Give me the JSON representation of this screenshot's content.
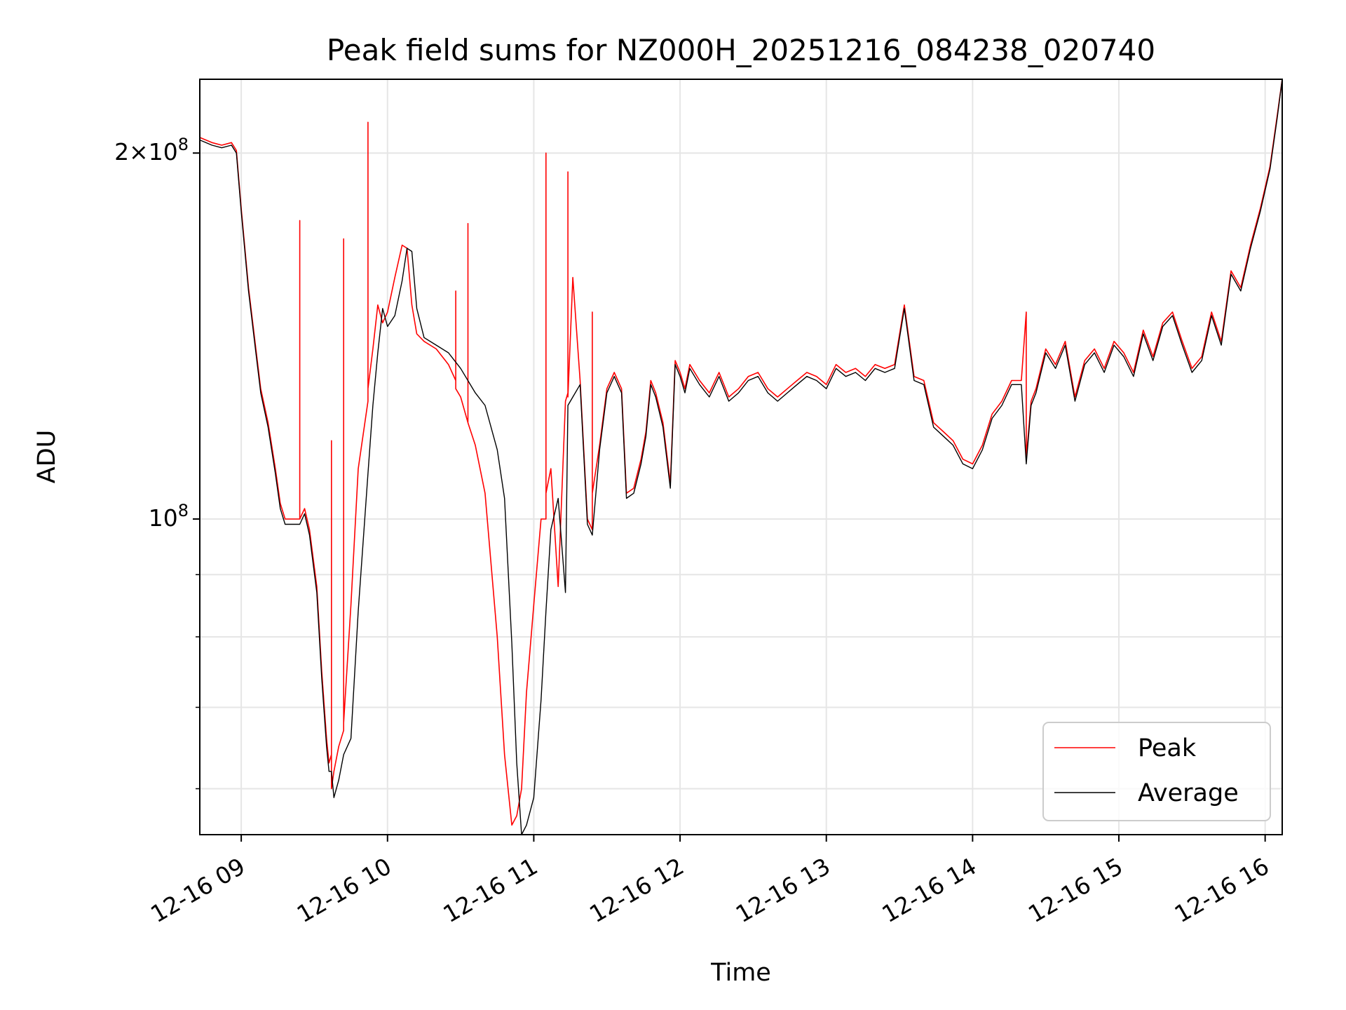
{
  "chart_data": {
    "type": "line",
    "title": "Peak field sums for NZ000H_20251216_084238_020740",
    "xlabel": "Time",
    "ylabel": "ADU",
    "yscale": "log",
    "xlim": [
      "12-16 08:43",
      "12-16 16:07"
    ],
    "ylim": [
      55000000,
      230000000
    ],
    "grid": true,
    "legend_location": "lower right",
    "x_ticks": [
      "12-16 09",
      "12-16 10",
      "12-16 11",
      "12-16 12",
      "12-16 13",
      "12-16 14",
      "12-16 15",
      "12-16 16"
    ],
    "y_ticks": [
      {
        "value": 100000000,
        "label": "10^8"
      },
      {
        "value": 200000000,
        "label": "2×10^8"
      }
    ],
    "series": [
      {
        "name": "Peak",
        "color": "#ff0000",
        "x": [
          "08:43",
          "08:48",
          "08:52",
          "08:56",
          "08:58",
          "09:00",
          "09:03",
          "09:06",
          "09:08",
          "09:11",
          "09:14",
          "09:16",
          "09:18",
          "09:21",
          "09:24",
          "09:24",
          "09:24",
          "09:26",
          "09:28",
          "09:31",
          "09:33",
          "09:35",
          "09:36",
          "09:37",
          "09:37",
          "09:37",
          "09:38",
          "09:40",
          "09:42",
          "09:42",
          "09:42",
          "09:45",
          "09:48",
          "09:52",
          "09:52",
          "09:52",
          "09:54",
          "09:56",
          "09:58",
          "10:00",
          "10:03",
          "10:06",
          "10:08",
          "10:10",
          "10:12",
          "10:15",
          "10:20",
          "10:25",
          "10:28",
          "10:28",
          "10:28",
          "10:30",
          "10:33",
          "10:33",
          "10:33",
          "10:36",
          "10:40",
          "10:45",
          "10:48",
          "10:51",
          "10:53",
          "10:55",
          "10:57",
          "11:00",
          "11:03",
          "11:05",
          "11:05",
          "11:05",
          "11:07",
          "11:10",
          "11:13",
          "11:14",
          "11:14",
          "11:14",
          "11:16",
          "11:19",
          "11:22",
          "11:24",
          "11:24",
          "11:24",
          "11:27",
          "11:30",
          "11:33",
          "11:36",
          "11:38",
          "11:41",
          "11:44",
          "11:46",
          "11:48",
          "11:50",
          "11:53",
          "11:56",
          "11:58",
          "12:00",
          "12:02",
          "12:04",
          "12:08",
          "12:12",
          "12:16",
          "12:20",
          "12:24",
          "12:28",
          "12:32",
          "12:36",
          "12:40",
          "12:44",
          "12:48",
          "12:52",
          "12:56",
          "13:00",
          "13:04",
          "13:08",
          "13:12",
          "13:16",
          "13:20",
          "13:24",
          "13:28",
          "13:32",
          "13:36",
          "13:40",
          "13:44",
          "13:48",
          "13:52",
          "13:56",
          "14:00",
          "14:04",
          "14:08",
          "14:12",
          "14:16",
          "14:20",
          "14:22",
          "14:22",
          "14:22",
          "14:24",
          "14:26",
          "14:30",
          "14:34",
          "14:38",
          "14:42",
          "14:46",
          "14:50",
          "14:54",
          "14:58",
          "15:02",
          "15:06",
          "15:10",
          "15:14",
          "15:18",
          "15:22",
          "15:26",
          "15:30",
          "15:34",
          "15:38",
          "15:42",
          "15:46",
          "15:50",
          "15:54",
          "15:58",
          "16:02",
          "16:05",
          "16:07"
        ],
        "y": [
          206000000,
          204000000,
          203000000,
          204000000,
          201000000,
          180000000,
          155000000,
          138000000,
          128000000,
          120000000,
          110000000,
          103000000,
          100000000,
          100000000,
          100000000,
          176000000,
          100000000,
          102000000,
          98000000,
          88000000,
          75000000,
          66000000,
          63000000,
          64000000,
          116000000,
          60000000,
          62000000,
          65000000,
          67000000,
          170000000,
          68000000,
          85000000,
          110000000,
          125000000,
          212000000,
          128000000,
          138000000,
          150000000,
          145000000,
          148000000,
          158000000,
          168000000,
          167000000,
          150000000,
          142000000,
          140000000,
          138000000,
          134000000,
          130000000,
          154000000,
          128000000,
          126000000,
          120000000,
          175000000,
          120000000,
          115000000,
          105000000,
          80000000,
          64000000,
          56000000,
          57000000,
          60000000,
          72000000,
          85000000,
          100000000,
          100000000,
          200000000,
          105000000,
          110000000,
          88000000,
          125000000,
          127000000,
          193000000,
          126000000,
          158000000,
          130000000,
          100000000,
          98000000,
          148000000,
          105000000,
          115000000,
          128000000,
          132000000,
          128000000,
          105000000,
          106000000,
          112000000,
          118000000,
          130000000,
          127000000,
          120000000,
          107000000,
          135000000,
          132000000,
          128000000,
          134000000,
          130000000,
          127000000,
          132000000,
          126000000,
          128000000,
          131000000,
          132000000,
          128000000,
          126000000,
          128000000,
          130000000,
          132000000,
          131000000,
          129000000,
          134000000,
          132000000,
          133000000,
          131000000,
          134000000,
          133000000,
          134000000,
          150000000,
          131000000,
          130000000,
          120000000,
          118000000,
          116000000,
          112000000,
          111000000,
          115000000,
          122000000,
          125000000,
          130000000,
          130000000,
          148000000,
          130000000,
          112000000,
          125000000,
          128000000,
          138000000,
          134000000,
          140000000,
          126000000,
          135000000,
          138000000,
          133000000,
          140000000,
          137000000,
          132000000,
          143000000,
          136000000,
          145000000,
          148000000,
          140000000,
          133000000,
          136000000,
          148000000,
          140000000,
          160000000,
          155000000,
          168000000,
          180000000,
          195000000,
          215000000,
          230000000
        ]
      },
      {
        "name": "Average",
        "color": "#000000",
        "x": [
          "08:43",
          "08:48",
          "08:52",
          "08:56",
          "08:58",
          "09:00",
          "09:03",
          "09:06",
          "09:08",
          "09:11",
          "09:14",
          "09:16",
          "09:18",
          "09:21",
          "09:24",
          "09:26",
          "09:28",
          "09:31",
          "09:33",
          "09:35",
          "09:36",
          "09:37",
          "09:38",
          "09:40",
          "09:42",
          "09:45",
          "09:48",
          "09:52",
          "09:54",
          "09:56",
          "09:58",
          "10:00",
          "10:03",
          "10:06",
          "10:08",
          "10:10",
          "10:12",
          "10:15",
          "10:20",
          "10:25",
          "10:30",
          "10:36",
          "10:40",
          "10:45",
          "10:48",
          "10:51",
          "10:53",
          "10:55",
          "10:57",
          "11:00",
          "11:03",
          "11:05",
          "11:07",
          "11:10",
          "11:13",
          "11:14",
          "11:16",
          "11:19",
          "11:22",
          "11:24",
          "11:27",
          "11:30",
          "11:33",
          "11:36",
          "11:38",
          "11:41",
          "11:44",
          "11:46",
          "11:48",
          "11:50",
          "11:53",
          "11:56",
          "11:58",
          "12:00",
          "12:02",
          "12:04",
          "12:08",
          "12:12",
          "12:16",
          "12:20",
          "12:24",
          "12:28",
          "12:32",
          "12:36",
          "12:40",
          "12:44",
          "12:48",
          "12:52",
          "12:56",
          "13:00",
          "13:04",
          "13:08",
          "13:12",
          "13:16",
          "13:20",
          "13:24",
          "13:28",
          "13:32",
          "13:36",
          "13:40",
          "13:44",
          "13:48",
          "13:52",
          "13:56",
          "14:00",
          "14:04",
          "14:08",
          "14:12",
          "14:16",
          "14:20",
          "14:22",
          "14:24",
          "14:26",
          "14:30",
          "14:34",
          "14:38",
          "14:42",
          "14:46",
          "14:50",
          "14:54",
          "14:58",
          "15:02",
          "15:06",
          "15:10",
          "15:14",
          "15:18",
          "15:22",
          "15:26",
          "15:30",
          "15:34",
          "15:38",
          "15:42",
          "15:46",
          "15:50",
          "15:54",
          "15:58",
          "16:02",
          "16:05",
          "16:07"
        ],
        "y": [
          205000000,
          203000000,
          202000000,
          203000000,
          200000000,
          179000000,
          154000000,
          137000000,
          127000000,
          119000000,
          109000000,
          102000000,
          99000000,
          99000000,
          99000000,
          101000000,
          97000000,
          87000000,
          74000000,
          65000000,
          62000000,
          62000000,
          59000000,
          61000000,
          64000000,
          66000000,
          84000000,
          109000000,
          124000000,
          137000000,
          149000000,
          144000000,
          147000000,
          157000000,
          167000000,
          166000000,
          149000000,
          141000000,
          139000000,
          137000000,
          133000000,
          127000000,
          124000000,
          114000000,
          104000000,
          79000000,
          63000000,
          55000000,
          56000000,
          59000000,
          71000000,
          84000000,
          98000000,
          104000000,
          87000000,
          124000000,
          126000000,
          129000000,
          99000000,
          97000000,
          114000000,
          127000000,
          131000000,
          127000000,
          104000000,
          105000000,
          111000000,
          117000000,
          129000000,
          126000000,
          119000000,
          106000000,
          134000000,
          131000000,
          127000000,
          133000000,
          129000000,
          126000000,
          131000000,
          125000000,
          127000000,
          130000000,
          131000000,
          127000000,
          125000000,
          127000000,
          129000000,
          131000000,
          130000000,
          128000000,
          133000000,
          131000000,
          132000000,
          130000000,
          133000000,
          132000000,
          133000000,
          149000000,
          130000000,
          129000000,
          119000000,
          117000000,
          115000000,
          111000000,
          110000000,
          114000000,
          121000000,
          124000000,
          129000000,
          129000000,
          111000000,
          124000000,
          127000000,
          137000000,
          133000000,
          139000000,
          125000000,
          134000000,
          137000000,
          132000000,
          139000000,
          136000000,
          131000000,
          142000000,
          135000000,
          144000000,
          147000000,
          139000000,
          132000000,
          135000000,
          147000000,
          139000000,
          159000000,
          154000000,
          167000000,
          179000000,
          194000000,
          214000000,
          230000000
        ]
      }
    ]
  }
}
